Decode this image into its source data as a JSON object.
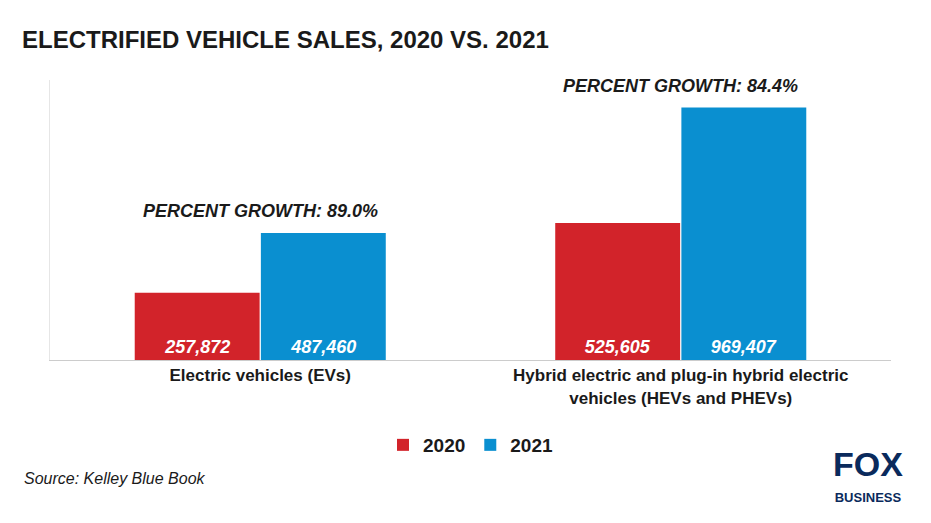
{
  "chart_data": {
    "type": "bar",
    "title": "ELECTRIFIED VEHICLE SALES, 2020 VS. 2021",
    "categories": [
      "Electric vehicles (EVs)",
      "Hybrid electric and plug-in hybrid electric vehicles (HEVs and PHEVs)"
    ],
    "series": [
      {
        "name": "2020",
        "color": "#d2232a",
        "values": [
          257872,
          525605
        ],
        "value_labels": [
          "257,872",
          "525,605"
        ]
      },
      {
        "name": "2021",
        "color": "#0a8fd0",
        "values": [
          487460,
          969407
        ],
        "value_labels": [
          "487,460",
          "969,407"
        ]
      }
    ],
    "annotations": [
      "PERCENT GROWTH: 89.0%",
      "PERCENT GROWTH: 84.4%"
    ],
    "source": "Source: Kelley Blue Book",
    "logo": "FOX BUSINESS",
    "ylim": [
      0,
      1075000
    ],
    "yticks": [],
    "data_labels": true,
    "tick_labels": "x",
    "legend": "bottom",
    "grid": false
  }
}
